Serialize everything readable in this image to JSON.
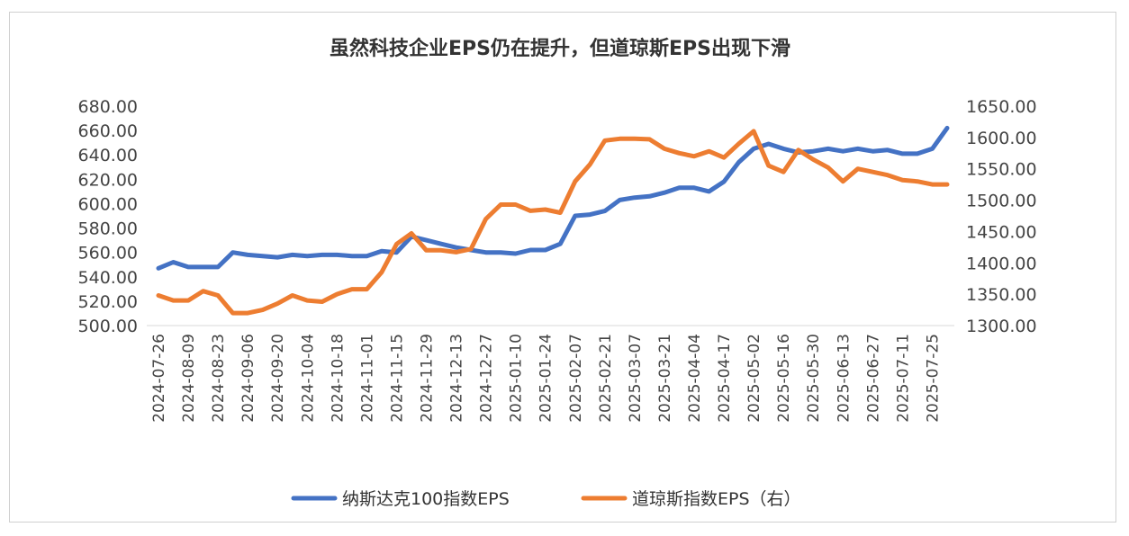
{
  "chart_data": {
    "type": "line",
    "title": "虽然科技企业EPS仍在提升，但道琼斯EPS出现下滑",
    "x": [
      "2024-07-26",
      "2024-08-02",
      "2024-08-09",
      "2024-08-16",
      "2024-08-23",
      "2024-08-30",
      "2024-09-06",
      "2024-09-13",
      "2024-09-20",
      "2024-09-27",
      "2024-10-04",
      "2024-10-11",
      "2024-10-18",
      "2024-10-25",
      "2024-11-01",
      "2024-11-08",
      "2024-11-15",
      "2024-11-22",
      "2024-11-29",
      "2024-12-06",
      "2024-12-13",
      "2024-12-20",
      "2024-12-27",
      "2025-01-03",
      "2025-01-10",
      "2025-01-17",
      "2025-01-24",
      "2025-01-31",
      "2025-02-07",
      "2025-02-14",
      "2025-02-21",
      "2025-02-28",
      "2025-03-07",
      "2025-03-14",
      "2025-03-21",
      "2025-03-28",
      "2025-04-04",
      "2025-04-11",
      "2025-04-17",
      "2025-04-25",
      "2025-05-02",
      "2025-05-09",
      "2025-05-16",
      "2025-05-23",
      "2025-05-30",
      "2025-06-06",
      "2025-06-13",
      "2025-06-20",
      "2025-06-27",
      "2025-07-04",
      "2025-07-11",
      "2025-07-18",
      "2025-07-25",
      "2025-08-01"
    ],
    "x_tick_labels": [
      "2024-07-26",
      "2024-08-09",
      "2024-08-23",
      "2024-09-06",
      "2024-09-20",
      "2024-10-04",
      "2024-10-18",
      "2024-11-01",
      "2024-11-15",
      "2024-11-29",
      "2024-12-13",
      "2024-12-27",
      "2025-01-10",
      "2025-01-24",
      "2025-02-07",
      "2025-02-21",
      "2025-03-07",
      "2025-03-21",
      "2025-04-04",
      "2025-04-17",
      "2025-05-02",
      "2025-05-16",
      "2025-05-30",
      "2025-06-13",
      "2025-06-27",
      "2025-07-11",
      "2025-07-25"
    ],
    "y_left": {
      "ylim": [
        500,
        680
      ],
      "ticks": [
        "680.00",
        "660.00",
        "640.00",
        "620.00",
        "600.00",
        "580.00",
        "560.00",
        "540.00",
        "520.00",
        "500.00"
      ]
    },
    "y_right": {
      "ylim": [
        1300,
        1650
      ],
      "ticks": [
        "1650.00",
        "1600.00",
        "1550.00",
        "1500.00",
        "1450.00",
        "1400.00",
        "1350.00",
        "1300.00"
      ]
    },
    "series": [
      {
        "name": "纳斯达克100指数EPS",
        "axis": "left",
        "color": "#4472C4",
        "values": [
          547,
          552,
          548,
          548,
          548,
          560,
          558,
          557,
          556,
          558,
          557,
          558,
          558,
          557,
          557,
          561,
          560,
          573,
          570,
          567,
          564,
          562,
          560,
          560,
          559,
          562,
          562,
          567,
          590,
          591,
          594,
          603,
          605,
          606,
          609,
          613,
          613,
          610,
          618,
          634,
          645,
          649,
          645,
          642,
          643,
          645,
          643,
          645,
          643,
          644,
          641,
          641,
          645,
          662
        ]
      },
      {
        "name": "道琼斯指数EPS（右）",
        "axis": "right",
        "color": "#ED7D31",
        "values": [
          1348,
          1340,
          1340,
          1355,
          1348,
          1320,
          1320,
          1325,
          1335,
          1348,
          1340,
          1338,
          1350,
          1358,
          1358,
          1385,
          1430,
          1447,
          1420,
          1420,
          1417,
          1422,
          1470,
          1493,
          1493,
          1483,
          1485,
          1480,
          1530,
          1557,
          1595,
          1598,
          1598,
          1597,
          1582,
          1575,
          1570,
          1578,
          1568,
          1590,
          1610,
          1555,
          1545,
          1580,
          1565,
          1552,
          1530,
          1550,
          1545,
          1540,
          1532,
          1530,
          1525,
          1525
        ]
      }
    ],
    "legend": "bottom",
    "grid": false
  }
}
